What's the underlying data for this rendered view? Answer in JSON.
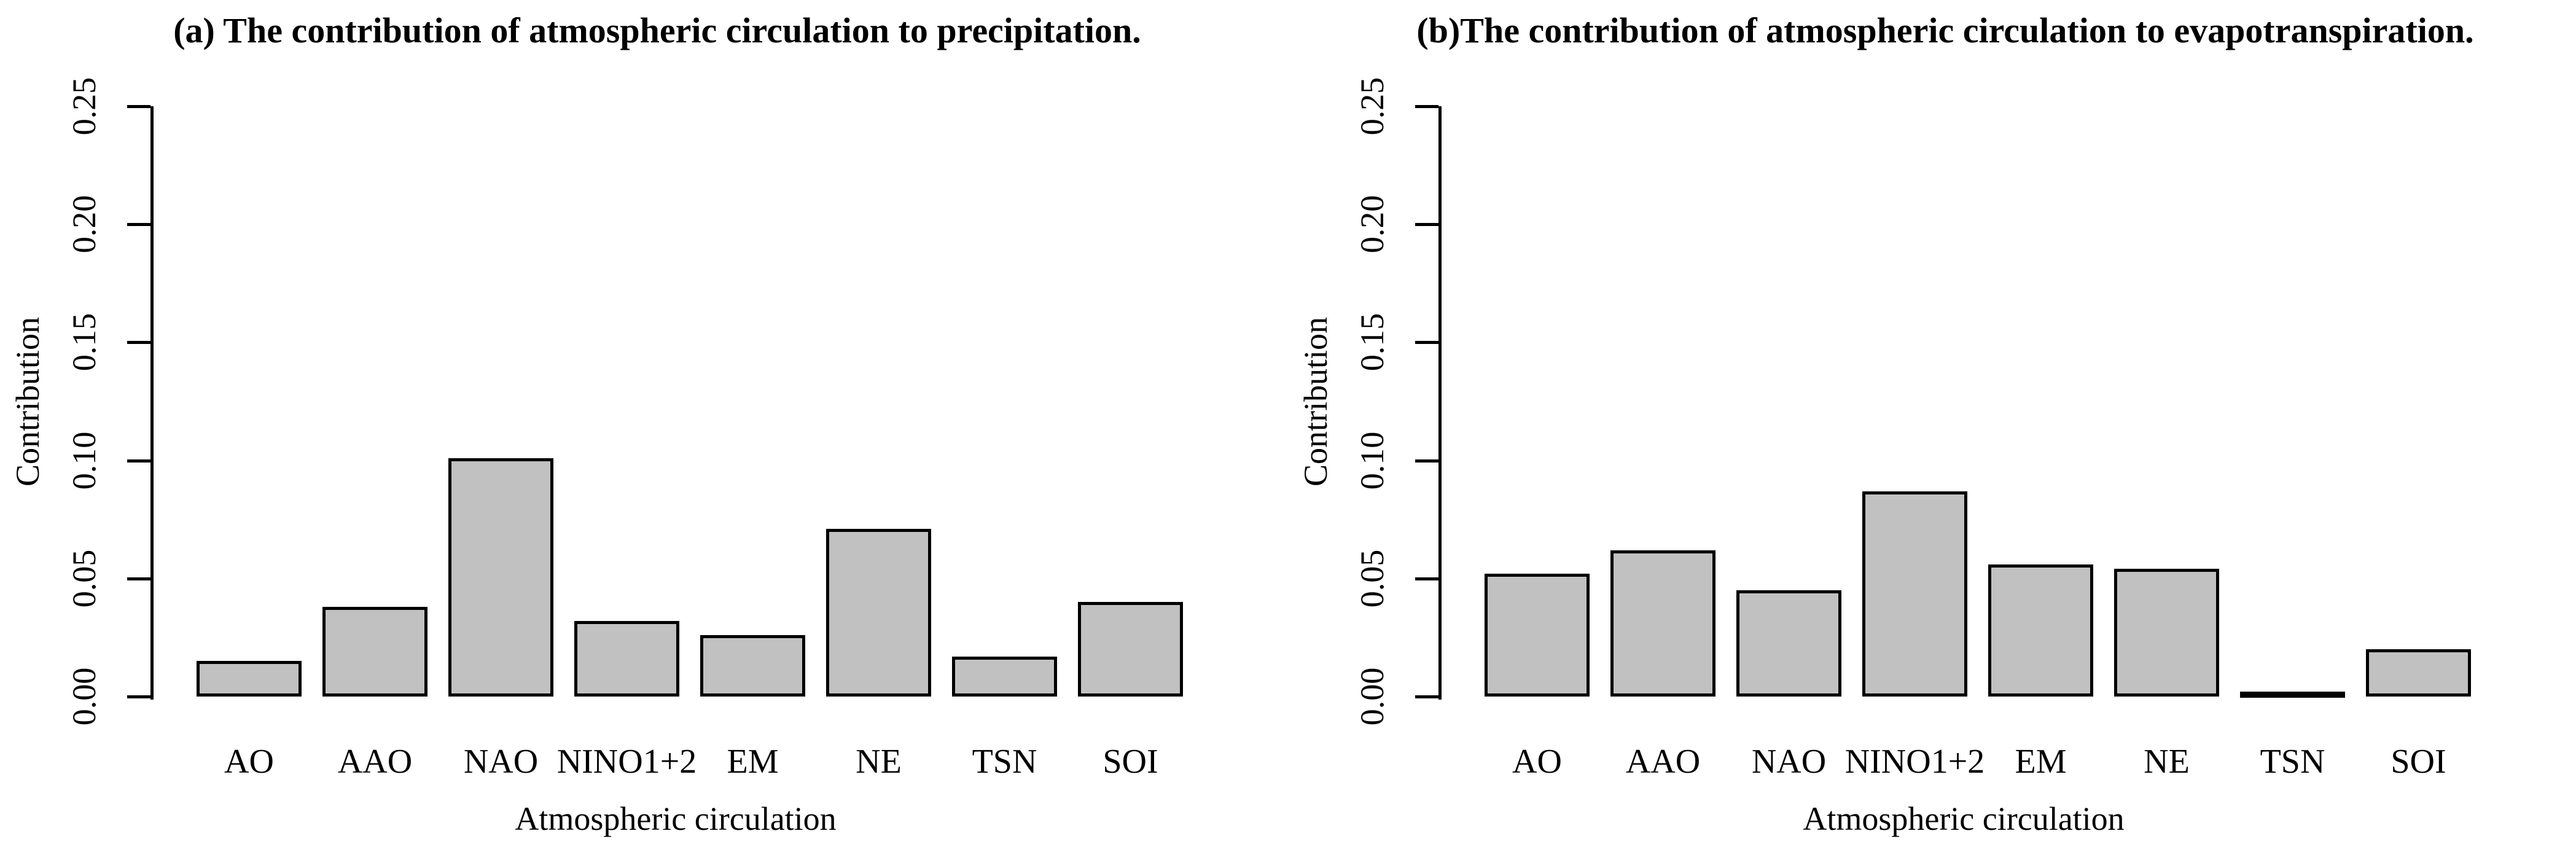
{
  "colors": {
    "bar_fill": "#c1c1c1",
    "bar_border": "#000000",
    "axis": "#000000",
    "background": "#ffffff"
  },
  "chart_data": [
    {
      "type": "bar",
      "title": "(a) The contribution of atmospheric circulation to precipitation.",
      "xlabel": "Atmospheric circulation",
      "ylabel": "Contribution",
      "categories": [
        "AO",
        "AAO",
        "NAO",
        "NINO1+2",
        "EM",
        "NE",
        "TSN",
        "SOI"
      ],
      "values": [
        0.015,
        0.038,
        0.101,
        0.032,
        0.026,
        0.071,
        0.017,
        0.04
      ],
      "ylim": [
        0,
        0.25
      ],
      "ytick_labels": [
        "0.00",
        "0.05",
        "0.10",
        "0.15",
        "0.20",
        "0.25"
      ],
      "ytick_values": [
        0.0,
        0.05,
        0.1,
        0.15,
        0.2,
        0.25
      ],
      "grid": "off",
      "legend": "none"
    },
    {
      "type": "bar",
      "title": "(b)The contribution of atmospheric circulation to evapotranspiration.",
      "xlabel": "Atmospheric circulation",
      "ylabel": "Contribution",
      "categories": [
        "AO",
        "AAO",
        "NAO",
        "NINO1+2",
        "EM",
        "NE",
        "TSN",
        "SOI"
      ],
      "values": [
        0.052,
        0.062,
        0.045,
        0.087,
        0.056,
        0.054,
        0.002,
        0.02
      ],
      "ylim": [
        0,
        0.25
      ],
      "ytick_labels": [
        "0.00",
        "0.05",
        "0.10",
        "0.15",
        "0.20",
        "0.25"
      ],
      "ytick_values": [
        0.0,
        0.05,
        0.1,
        0.15,
        0.2,
        0.25
      ],
      "grid": "off",
      "legend": "none"
    }
  ]
}
